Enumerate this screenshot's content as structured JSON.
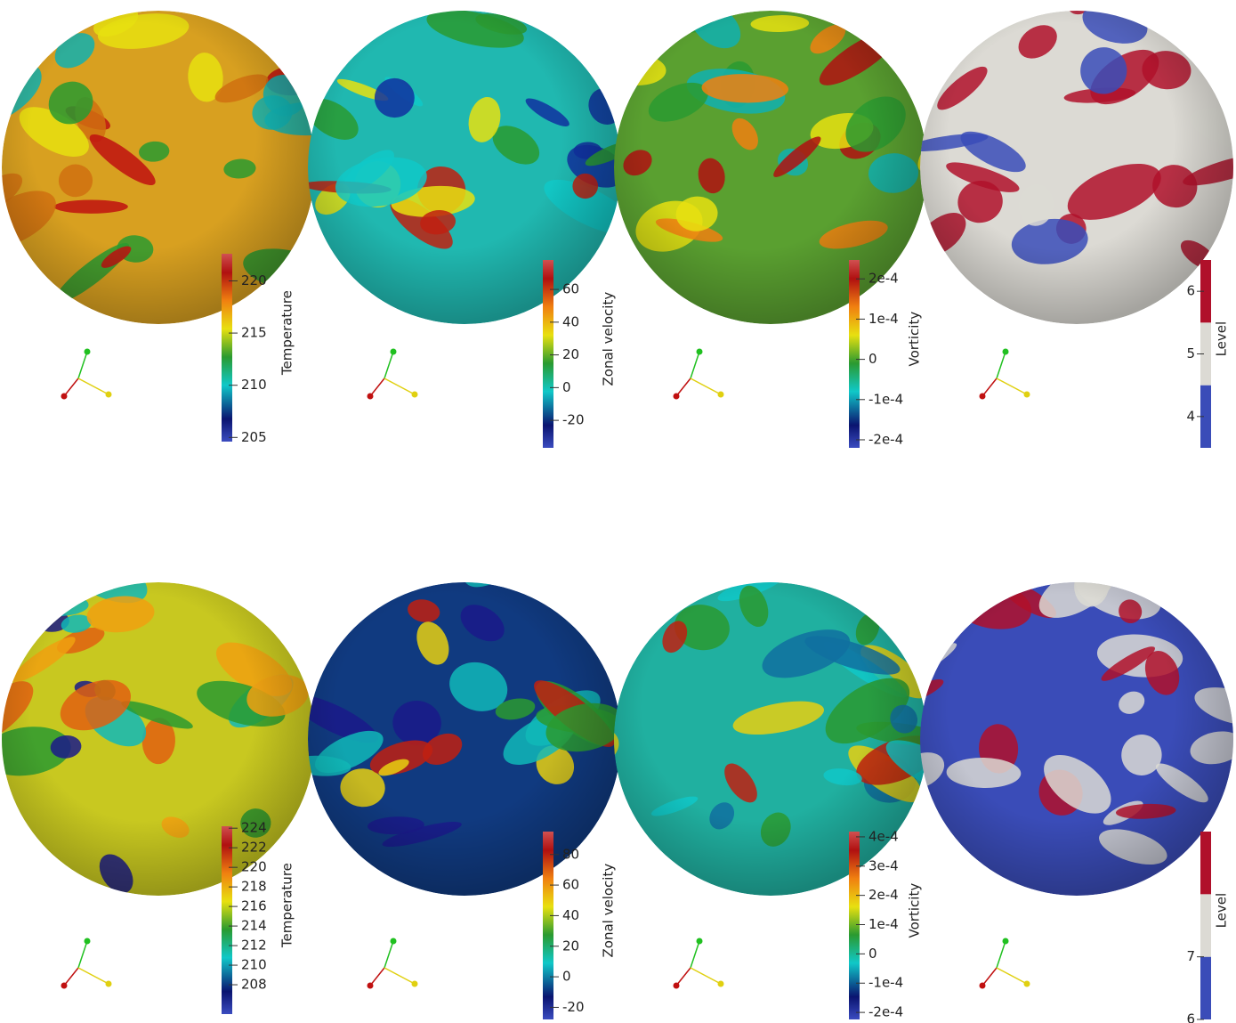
{
  "panels": [
    {
      "colorbar": {
        "title": "Temperature",
        "kind": "continuous",
        "range": [
          204.6,
          222.6
        ],
        "ticks": [
          {
            "value": 220,
            "label": "220"
          },
          {
            "value": 215,
            "label": "215"
          },
          {
            "value": 210,
            "label": "210"
          },
          {
            "value": 205,
            "label": "205"
          }
        ]
      }
    },
    {
      "colorbar": {
        "title": "Zonal velocity",
        "kind": "continuous",
        "range": [
          -36.8,
          78
        ],
        "ticks": [
          {
            "value": 60,
            "label": "60"
          },
          {
            "value": 40,
            "label": "40"
          },
          {
            "value": 20,
            "label": "20"
          },
          {
            "value": 0,
            "label": "0"
          },
          {
            "value": -20,
            "label": "-20"
          }
        ]
      }
    },
    {
      "colorbar": {
        "title": "Vorticity",
        "kind": "continuous",
        "range": [
          -0.00022,
          0.000247
        ],
        "ticks": [
          {
            "value": 0.0002,
            "label": "2e-4"
          },
          {
            "value": 0.0001,
            "label": "1e-4"
          },
          {
            "value": 0,
            "label": "0"
          },
          {
            "value": -0.0001,
            "label": "-1e-4"
          },
          {
            "value": -0.0002,
            "label": "-2e-4"
          }
        ]
      }
    },
    {
      "colorbar": {
        "title": "Level",
        "kind": "discrete",
        "range": [
          3.5,
          6.5
        ],
        "ticks": [
          {
            "value": 6,
            "label": "6"
          },
          {
            "value": 5,
            "label": "5"
          },
          {
            "value": 4,
            "label": "4"
          }
        ]
      }
    },
    {
      "colorbar": {
        "title": "Temperature",
        "kind": "continuous",
        "range": [
          205,
          224.2
        ],
        "ticks": [
          {
            "value": 224,
            "label": "224"
          },
          {
            "value": 222,
            "label": "222"
          },
          {
            "value": 220,
            "label": "220"
          },
          {
            "value": 218,
            "label": "218"
          },
          {
            "value": 216,
            "label": "216"
          },
          {
            "value": 214,
            "label": "214"
          },
          {
            "value": 212,
            "label": "212"
          },
          {
            "value": 210,
            "label": "210"
          },
          {
            "value": 208,
            "label": "208"
          }
        ]
      }
    },
    {
      "colorbar": {
        "title": "Zonal velocity",
        "kind": "continuous",
        "range": [
          -27.9,
          95
        ],
        "ticks": [
          {
            "value": 80,
            "label": "80"
          },
          {
            "value": 60,
            "label": "60"
          },
          {
            "value": 40,
            "label": "40"
          },
          {
            "value": 20,
            "label": "20"
          },
          {
            "value": 0,
            "label": "0"
          },
          {
            "value": -20,
            "label": "-20"
          }
        ]
      }
    },
    {
      "colorbar": {
        "title": "Vorticity",
        "kind": "continuous",
        "range": [
          -0.000224,
          0.000418
        ],
        "ticks": [
          {
            "value": 0.0004,
            "label": "4e-4"
          },
          {
            "value": 0.0003,
            "label": "3e-4"
          },
          {
            "value": 0.0002,
            "label": "2e-4"
          },
          {
            "value": 0.0001,
            "label": "1e-4"
          },
          {
            "value": 0,
            "label": "0"
          },
          {
            "value": -0.0001,
            "label": "-1e-4"
          },
          {
            "value": -0.0002,
            "label": "-2e-4"
          }
        ]
      }
    },
    {
      "colorbar": {
        "title": "Level",
        "kind": "discrete",
        "range": [
          6,
          9
        ],
        "ticks": [
          {
            "value": 7,
            "label": "7"
          },
          {
            "value": 6,
            "label": "6"
          }
        ]
      }
    }
  ]
}
